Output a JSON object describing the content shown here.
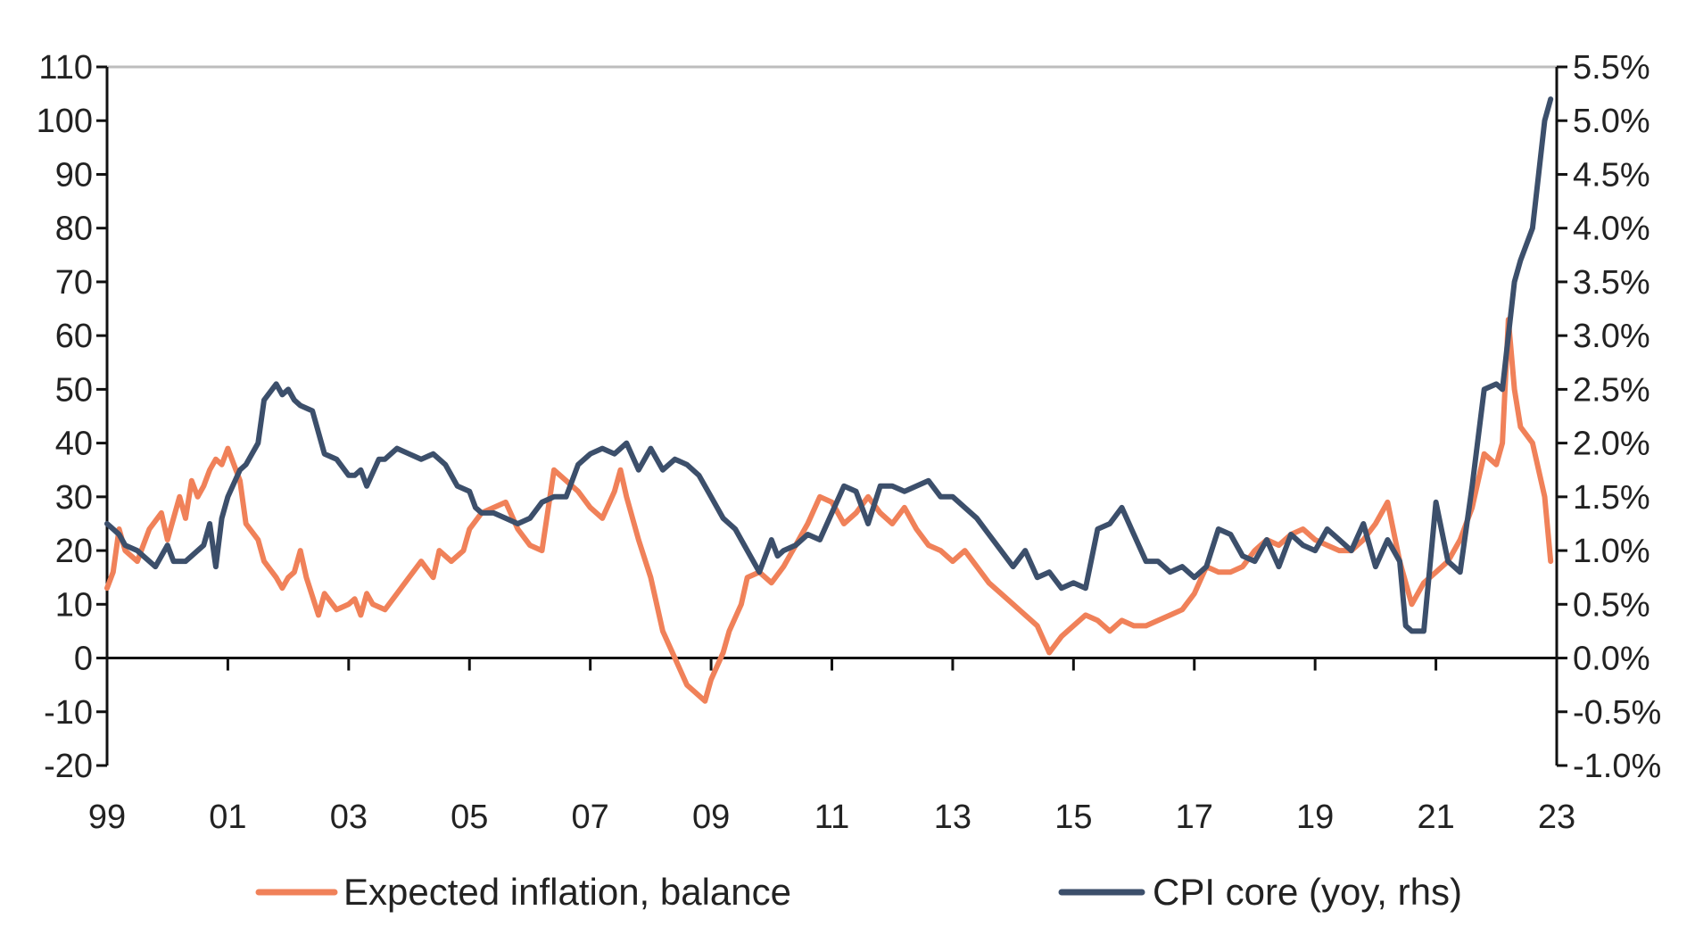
{
  "chart_data": {
    "type": "line",
    "x_range": [
      1999.0,
      2023.0
    ],
    "x_tick_values": [
      1999,
      2001,
      2003,
      2005,
      2007,
      2009,
      2011,
      2013,
      2015,
      2017,
      2019,
      2021,
      2023
    ],
    "x_tick_labels": [
      "99",
      "01",
      "03",
      "05",
      "07",
      "09",
      "11",
      "13",
      "15",
      "17",
      "19",
      "21",
      "23"
    ],
    "y_left": {
      "range": [
        -20,
        110
      ],
      "ticks": [
        110,
        100,
        90,
        80,
        70,
        60,
        50,
        40,
        30,
        20,
        10,
        0,
        -10,
        -20
      ],
      "tick_labels": [
        "110",
        "100",
        "90",
        "80",
        "70",
        "60",
        "50",
        "40",
        "30",
        "20",
        "10",
        "0",
        "-10",
        "-20"
      ]
    },
    "y_right": {
      "range": [
        -1.0,
        5.5
      ],
      "ticks": [
        5.5,
        5.0,
        4.5,
        4.0,
        3.5,
        3.0,
        2.5,
        2.0,
        1.5,
        1.0,
        0.5,
        0.0,
        -0.5,
        -1.0
      ],
      "tick_labels": [
        "5.5%",
        "5.0%",
        "4.5%",
        "4.0%",
        "3.5%",
        "3.0%",
        "2.5%",
        "2.0%",
        "1.5%",
        "1.0%",
        "0.5%",
        "0.0%",
        "-0.5%",
        "-1.0%"
      ]
    },
    "gridlines": "top border only; zero line emphasized",
    "legend_position": "bottom",
    "series": [
      {
        "name": "Expected inflation, balance",
        "axis": "left",
        "color": "#f08159",
        "x": [
          1999.0,
          1999.1,
          1999.2,
          1999.3,
          1999.5,
          1999.7,
          1999.9,
          2000.0,
          2000.2,
          2000.3,
          2000.4,
          2000.5,
          2000.6,
          2000.7,
          2000.8,
          2000.9,
          2001.0,
          2001.1,
          2001.2,
          2001.3,
          2001.5,
          2001.6,
          2001.8,
          2001.9,
          2002.0,
          2002.1,
          2002.2,
          2002.3,
          2002.5,
          2002.6,
          2002.8,
          2003.0,
          2003.1,
          2003.2,
          2003.3,
          2003.4,
          2003.6,
          2003.8,
          2004.0,
          2004.2,
          2004.4,
          2004.5,
          2004.7,
          2004.9,
          2005.0,
          2005.2,
          2005.4,
          2005.6,
          2005.8,
          2006.0,
          2006.2,
          2006.4,
          2006.6,
          2006.8,
          2007.0,
          2007.2,
          2007.4,
          2007.5,
          2007.6,
          2007.8,
          2008.0,
          2008.2,
          2008.4,
          2008.6,
          2008.7,
          2008.9,
          2009.0,
          2009.2,
          2009.3,
          2009.5,
          2009.6,
          2009.8,
          2010.0,
          2010.2,
          2010.4,
          2010.6,
          2010.8,
          2011.0,
          2011.2,
          2011.4,
          2011.6,
          2011.8,
          2012.0,
          2012.2,
          2012.4,
          2012.6,
          2012.8,
          2013.0,
          2013.2,
          2013.4,
          2013.6,
          2013.8,
          2014.0,
          2014.2,
          2014.4,
          2014.6,
          2014.8,
          2015.0,
          2015.2,
          2015.4,
          2015.6,
          2015.8,
          2016.0,
          2016.2,
          2016.4,
          2016.6,
          2016.8,
          2017.0,
          2017.2,
          2017.4,
          2017.6,
          2017.8,
          2018.0,
          2018.2,
          2018.4,
          2018.6,
          2018.8,
          2019.0,
          2019.2,
          2019.4,
          2019.6,
          2019.8,
          2020.0,
          2020.2,
          2020.4,
          2020.6,
          2020.8,
          2021.0,
          2021.2,
          2021.4,
          2021.6,
          2021.8,
          2022.0,
          2022.1,
          2022.2,
          2022.3,
          2022.4,
          2022.6,
          2022.8,
          2022.9
        ],
        "values": [
          13,
          16,
          24,
          20,
          18,
          24,
          27,
          22,
          30,
          26,
          33,
          30,
          32,
          35,
          37,
          36,
          39,
          36,
          33,
          25,
          22,
          18,
          15,
          13,
          15,
          16,
          20,
          15,
          8,
          12,
          9,
          10,
          11,
          8,
          12,
          10,
          9,
          12,
          15,
          18,
          15,
          20,
          18,
          20,
          24,
          27,
          28,
          29,
          24,
          21,
          20,
          35,
          33,
          31,
          28,
          26,
          31,
          35,
          30,
          22,
          15,
          5,
          0,
          -5,
          -6,
          -8,
          -4,
          1,
          5,
          10,
          15,
          16,
          14,
          17,
          21,
          25,
          30,
          29,
          25,
          27,
          30,
          27,
          25,
          28,
          24,
          21,
          20,
          18,
          20,
          17,
          14,
          12,
          10,
          8,
          6,
          1,
          4,
          6,
          8,
          7,
          5,
          7,
          6,
          6,
          7,
          8,
          9,
          12,
          17,
          16,
          16,
          17,
          20,
          22,
          21,
          23,
          24,
          22,
          21,
          20,
          20,
          22,
          25,
          29,
          18,
          10,
          14,
          16,
          18,
          22,
          28,
          38,
          36,
          40,
          63,
          50,
          43,
          40,
          30,
          18
        ]
      },
      {
        "name": "CPI core (yoy, rhs)",
        "axis": "right",
        "color": "#3c4f6b",
        "x": [
          1999.0,
          1999.1,
          1999.2,
          1999.3,
          1999.5,
          1999.6,
          1999.8,
          2000.0,
          2000.1,
          2000.3,
          2000.4,
          2000.6,
          2000.7,
          2000.8,
          2000.9,
          2001.0,
          2001.2,
          2001.3,
          2001.5,
          2001.6,
          2001.8,
          2001.9,
          2002.0,
          2002.1,
          2002.2,
          2002.4,
          2002.6,
          2002.8,
          2003.0,
          2003.1,
          2003.2,
          2003.3,
          2003.5,
          2003.6,
          2003.8,
          2004.0,
          2004.2,
          2004.4,
          2004.6,
          2004.8,
          2005.0,
          2005.1,
          2005.2,
          2005.4,
          2005.6,
          2005.8,
          2006.0,
          2006.2,
          2006.4,
          2006.6,
          2006.8,
          2007.0,
          2007.2,
          2007.4,
          2007.6,
          2007.8,
          2008.0,
          2008.2,
          2008.4,
          2008.6,
          2008.8,
          2009.0,
          2009.2,
          2009.4,
          2009.6,
          2009.8,
          2010.0,
          2010.1,
          2010.2,
          2010.4,
          2010.6,
          2010.8,
          2011.0,
          2011.2,
          2011.4,
          2011.6,
          2011.8,
          2012.0,
          2012.2,
          2012.4,
          2012.6,
          2012.8,
          2013.0,
          2013.2,
          2013.4,
          2013.6,
          2013.8,
          2014.0,
          2014.2,
          2014.4,
          2014.6,
          2014.8,
          2015.0,
          2015.2,
          2015.4,
          2015.6,
          2015.8,
          2016.0,
          2016.2,
          2016.4,
          2016.6,
          2016.8,
          2017.0,
          2017.2,
          2017.4,
          2017.6,
          2017.8,
          2018.0,
          2018.2,
          2018.4,
          2018.6,
          2018.8,
          2019.0,
          2019.2,
          2019.4,
          2019.6,
          2019.8,
          2020.0,
          2020.2,
          2020.4,
          2020.5,
          2020.6,
          2020.8,
          2021.0,
          2021.2,
          2021.4,
          2021.6,
          2021.8,
          2022.0,
          2022.1,
          2022.2,
          2022.3,
          2022.4,
          2022.6,
          2022.7,
          2022.8,
          2022.9
        ],
        "values": [
          1.25,
          1.2,
          1.15,
          1.05,
          1.0,
          0.95,
          0.85,
          1.05,
          0.9,
          0.9,
          0.95,
          1.05,
          1.25,
          0.85,
          1.3,
          1.5,
          1.75,
          1.8,
          2.0,
          2.4,
          2.55,
          2.45,
          2.5,
          2.4,
          2.35,
          2.3,
          1.9,
          1.85,
          1.7,
          1.7,
          1.75,
          1.6,
          1.85,
          1.85,
          1.95,
          1.9,
          1.85,
          1.9,
          1.8,
          1.6,
          1.55,
          1.4,
          1.35,
          1.35,
          1.3,
          1.25,
          1.3,
          1.45,
          1.5,
          1.5,
          1.8,
          1.9,
          1.95,
          1.9,
          2.0,
          1.75,
          1.95,
          1.75,
          1.85,
          1.8,
          1.7,
          1.5,
          1.3,
          1.2,
          1.0,
          0.8,
          1.1,
          0.95,
          1.0,
          1.05,
          1.15,
          1.1,
          1.35,
          1.6,
          1.55,
          1.25,
          1.6,
          1.6,
          1.55,
          1.6,
          1.65,
          1.5,
          1.5,
          1.4,
          1.3,
          1.15,
          1.0,
          0.85,
          1.0,
          0.75,
          0.8,
          0.65,
          0.7,
          0.65,
          1.2,
          1.25,
          1.4,
          1.15,
          0.9,
          0.9,
          0.8,
          0.85,
          0.75,
          0.85,
          1.2,
          1.15,
          0.95,
          0.9,
          1.1,
          0.85,
          1.15,
          1.05,
          1.0,
          1.2,
          1.1,
          1.0,
          1.25,
          0.85,
          1.1,
          0.9,
          0.3,
          0.25,
          0.25,
          1.45,
          0.9,
          0.8,
          1.6,
          2.5,
          2.55,
          2.5,
          3.0,
          3.5,
          3.7,
          4.0,
          4.5,
          5.0,
          5.2
        ]
      }
    ]
  }
}
